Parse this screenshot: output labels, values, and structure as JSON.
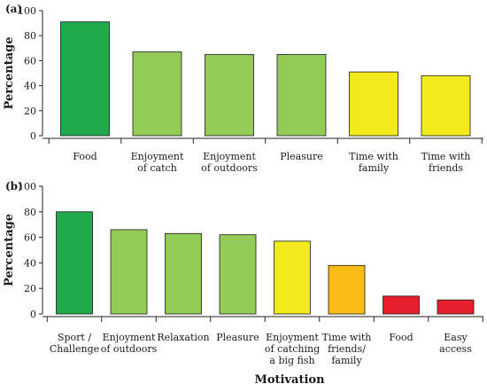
{
  "chart_data": [
    {
      "panel_label": "(a)",
      "type": "bar",
      "ylabel": "Percentage",
      "ylim": [
        0,
        100
      ],
      "yticks": [
        "0",
        "20",
        "40",
        "60",
        "80",
        "100"
      ],
      "categories": [
        [
          "Food"
        ],
        [
          "Enjoyment",
          "of catch"
        ],
        [
          "Enjoyment",
          "of outdoors"
        ],
        [
          "Pleasure"
        ],
        [
          "Time with",
          "family"
        ],
        [
          "Time with",
          "friends"
        ]
      ],
      "values": [
        91,
        67,
        65,
        65,
        51,
        48
      ],
      "bar_colors": [
        "#1faa4b",
        "#93cb57",
        "#93cb57",
        "#93cb57",
        "#f2ea1c",
        "#f2ea1c"
      ]
    },
    {
      "panel_label": "(b)",
      "type": "bar",
      "ylabel": "Percentage",
      "xlabel": "Motivation",
      "ylim": [
        0,
        100
      ],
      "yticks": [
        "0",
        "20",
        "40",
        "60",
        "80",
        "100"
      ],
      "categories": [
        [
          "Sport /",
          "Challenge"
        ],
        [
          "Enjoyment",
          "of outdoors"
        ],
        [
          "Relaxation"
        ],
        [
          "Pleasure"
        ],
        [
          "Enjoyment",
          "of catching",
          "a big fish"
        ],
        [
          "Time with",
          "friends/",
          "family"
        ],
        [
          "Food"
        ],
        [
          "Easy",
          "access"
        ]
      ],
      "values": [
        80,
        66,
        63,
        62,
        57,
        38,
        14,
        11
      ],
      "bar_colors": [
        "#1faa4b",
        "#93cb57",
        "#93cb57",
        "#93cb57",
        "#f2ea1c",
        "#f7bd16",
        "#e3202b",
        "#e3202b"
      ]
    }
  ]
}
